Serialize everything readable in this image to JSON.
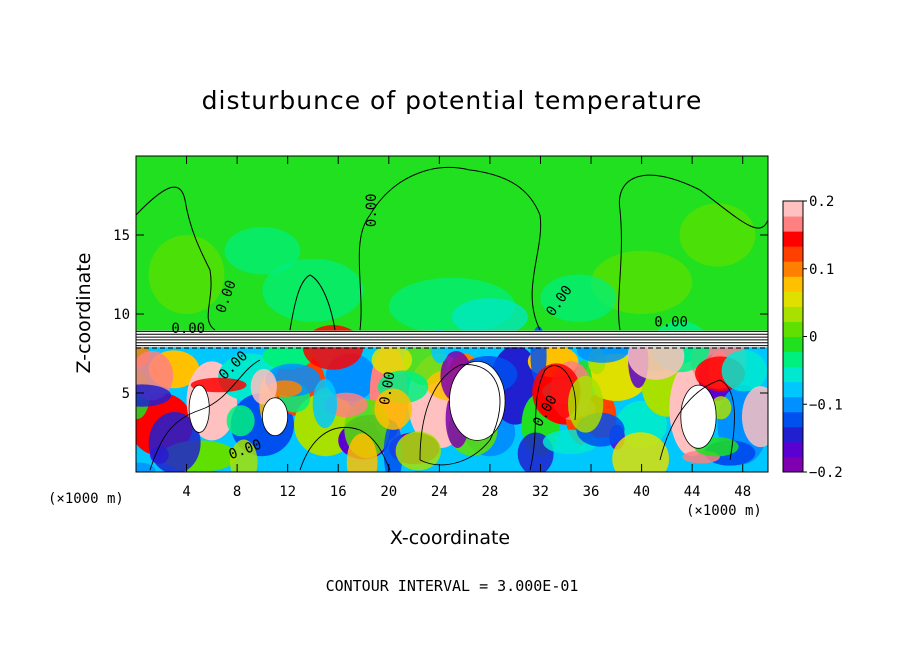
{
  "chart_data": {
    "type": "heatmap",
    "title": "disturbunce of potential temperature",
    "xlabel": "X-coordinate",
    "ylabel": "Z-coordinate",
    "x_unit": "(×1000 m)",
    "x_ticks": [
      4,
      8,
      12,
      16,
      20,
      24,
      28,
      32,
      36,
      40,
      44,
      48
    ],
    "y_ticks": [
      5,
      10,
      15
    ],
    "xlim": [
      0,
      50
    ],
    "ylim": [
      0,
      20
    ],
    "colorbar": {
      "min": -0.2,
      "max": 0.2,
      "tick_labels": [
        "0.2",
        "0.1",
        "0",
        "−0.1",
        "−0.2"
      ],
      "tick_values": [
        0.2,
        0.1,
        0,
        -0.1,
        -0.2
      ],
      "colors": [
        "#7f00b0",
        "#5a00d0",
        "#2020d0",
        "#0050f0",
        "#0090ff",
        "#00c8ff",
        "#00e8d0",
        "#00f080",
        "#20e020",
        "#60e000",
        "#a8e000",
        "#e0e000",
        "#ffc000",
        "#ff8000",
        "#ff4000",
        "#ff0000",
        "#ff8080",
        "#ffc0c0"
      ]
    },
    "contour_label": "0.00",
    "contour_interval_text": "CONTOUR INTERVAL = 3.000E-01"
  }
}
